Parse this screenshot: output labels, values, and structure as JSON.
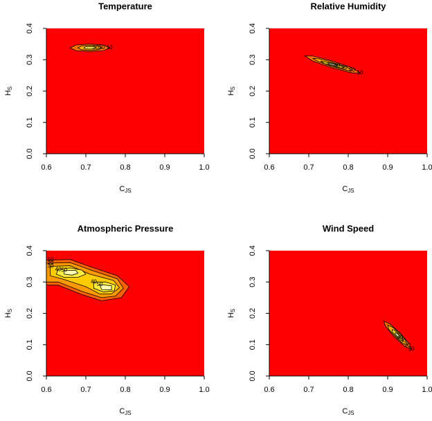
{
  "chart_data": [
    {
      "type": "contour",
      "title": "Temperature",
      "xlabel": "C",
      "xlabel_sub": "JS",
      "ylabel": "H",
      "ylabel_sub": "S",
      "background": "#ff0000",
      "xlim": [
        0.6,
        1.0
      ],
      "ylim": [
        0.0,
        0.4
      ],
      "xticks": [
        0.6,
        0.7,
        0.8,
        0.9,
        {
          "value": 1.0,
          "label": "1.0"
        }
      ],
      "yticks": [
        {
          "value": 0.0,
          "label": "0.0"
        },
        0.1,
        0.2,
        0.3,
        0.4
      ],
      "contours": [
        {
          "level": 10,
          "color": "#ff7000",
          "x": [
            0.76,
            0.745,
            0.71,
            0.675,
            0.66,
            0.675,
            0.71,
            0.745
          ],
          "y": [
            0.338,
            0.347,
            0.35,
            0.347,
            0.338,
            0.329,
            0.326,
            0.329
          ]
        },
        {
          "level": 20,
          "color": "#ffb000",
          "x": [
            0.74,
            0.731,
            0.71,
            0.689,
            0.68,
            0.689,
            0.71,
            0.731
          ],
          "y": [
            0.338,
            0.344,
            0.346,
            0.344,
            0.338,
            0.332,
            0.33,
            0.332
          ]
        },
        {
          "level": 30,
          "color": "#ffee60",
          "x": [
            0.725,
            0.721,
            0.71,
            0.699,
            0.695,
            0.699,
            0.71,
            0.721
          ],
          "y": [
            0.338,
            0.341,
            0.342,
            0.341,
            0.338,
            0.335,
            0.334,
            0.335
          ]
        }
      ]
    },
    {
      "type": "contour",
      "title": "Relative Humidity",
      "xlabel": "C",
      "xlabel_sub": "JS",
      "ylabel": "H",
      "ylabel_sub": "S",
      "background": "#ff0000",
      "xlim": [
        0.6,
        1.0
      ],
      "ylim": [
        0.0,
        0.4
      ],
      "xticks": [
        0.6,
        0.7,
        0.8,
        0.9,
        {
          "value": 1.0,
          "label": "1.0"
        }
      ],
      "yticks": [
        {
          "value": 0.0,
          "label": "0.0"
        },
        0.1,
        0.2,
        0.3,
        0.4
      ],
      "contours": [
        {
          "level": 10,
          "color": "#ff7000",
          "x": [
            0.83,
            0.81,
            0.76,
            0.71,
            0.69,
            0.71,
            0.76,
            0.81
          ],
          "y": [
            0.258,
            0.274,
            0.296,
            0.312,
            0.312,
            0.296,
            0.274,
            0.258
          ]
        },
        {
          "level": 20,
          "color": "#ffb000",
          "x": [
            0.81,
            0.795,
            0.76,
            0.725,
            0.71,
            0.725,
            0.76,
            0.795
          ],
          "y": [
            0.266,
            0.277,
            0.292,
            0.303,
            0.304,
            0.294,
            0.278,
            0.267
          ]
        },
        {
          "level": 30,
          "color": "#ffdd30",
          "x": [
            0.79,
            0.781,
            0.76,
            0.739,
            0.73,
            0.739,
            0.76,
            0.781
          ],
          "y": [
            0.274,
            0.28,
            0.289,
            0.293,
            0.296,
            0.288,
            0.281,
            0.274
          ]
        },
        {
          "level": 40,
          "color": "#ffffc0",
          "x": [
            0.772,
            0.768,
            0.76,
            0.752,
            0.748,
            0.752,
            0.76,
            0.768
          ],
          "y": [
            0.281,
            0.284,
            0.287,
            0.289,
            0.289,
            0.285,
            0.283,
            0.28
          ]
        }
      ]
    },
    {
      "type": "contour",
      "title": "Atmospheric Pressure",
      "xlabel": "C",
      "xlabel_sub": "JS",
      "ylabel": "H",
      "ylabel_sub": "S",
      "background": "#ff0000",
      "xlim": [
        0.6,
        1.0
      ],
      "ylim": [
        0.0,
        0.4
      ],
      "xticks": [
        0.6,
        0.7,
        0.8,
        0.9,
        {
          "value": 1.0,
          "label": "1.0"
        }
      ],
      "yticks": [
        {
          "value": 0.0,
          "label": "0.0"
        },
        0.1,
        0.2,
        0.3,
        0.4
      ],
      "contours": [
        {
          "level": 10,
          "color": "#ff6000",
          "x": [
            0.6,
            0.66,
            0.72,
            0.78,
            0.81,
            0.79,
            0.74,
            0.69,
            0.63,
            0.6
          ],
          "y": [
            0.37,
            0.372,
            0.345,
            0.32,
            0.285,
            0.25,
            0.24,
            0.26,
            0.29,
            0.29
          ]
        },
        {
          "level": 20,
          "color": "#ff9900",
          "x": [
            0.6,
            0.66,
            0.72,
            0.78,
            0.795,
            0.775,
            0.74,
            0.69,
            0.63,
            0.6
          ],
          "y": [
            0.36,
            0.362,
            0.335,
            0.31,
            0.28,
            0.255,
            0.25,
            0.27,
            0.3,
            0.3
          ]
        },
        {
          "level": 30,
          "color": "#ffcc00",
          "x": [
            0.61,
            0.66,
            0.71,
            0.77,
            0.785,
            0.765,
            0.735,
            0.7,
            0.64,
            0.61
          ],
          "y": [
            0.35,
            0.352,
            0.325,
            0.305,
            0.282,
            0.262,
            0.262,
            0.285,
            0.31,
            0.32
          ]
        },
        {
          "level": 40,
          "color": "#ffee40",
          "x": [
            0.63,
            0.66,
            0.69,
            0.7,
            0.68,
            0.645,
            0.625
          ],
          "y": [
            0.34,
            0.345,
            0.338,
            0.325,
            0.315,
            0.315,
            0.325
          ]
        },
        {
          "level": 40,
          "color": "#ffee40",
          "x": [
            0.72,
            0.75,
            0.775,
            0.772,
            0.745,
            0.72
          ],
          "y": [
            0.3,
            0.3,
            0.29,
            0.272,
            0.268,
            0.28
          ]
        },
        {
          "level": 50,
          "color": "#ffffb0",
          "x": [
            0.645,
            0.675,
            0.68,
            0.665,
            0.645
          ],
          "y": [
            0.337,
            0.337,
            0.328,
            0.322,
            0.325
          ]
        },
        {
          "level": 50,
          "color": "#ffffb0",
          "x": [
            0.735,
            0.765,
            0.765,
            0.74
          ],
          "y": [
            0.292,
            0.288,
            0.275,
            0.276
          ]
        }
      ]
    },
    {
      "type": "contour",
      "title": "Wind Speed",
      "xlabel": "C",
      "xlabel_sub": "JS",
      "ylabel": "H",
      "ylabel_sub": "S",
      "background": "#ff0000",
      "xlim": [
        0.6,
        1.0
      ],
      "ylim": [
        0.0,
        0.4
      ],
      "xticks": [
        0.6,
        0.7,
        0.8,
        0.9,
        {
          "value": 1.0,
          "label": "1.0"
        }
      ],
      "yticks": [
        {
          "value": 0.0,
          "label": "0.0"
        },
        0.1,
        0.2,
        0.3,
        0.4
      ],
      "contours": [
        {
          "level": 10,
          "color": "#ff7000",
          "x": [
            0.96,
            0.955,
            0.933,
            0.906,
            0.89,
            0.895,
            0.917,
            0.944
          ],
          "y": [
            0.085,
            0.102,
            0.136,
            0.166,
            0.175,
            0.158,
            0.124,
            0.094
          ]
        },
        {
          "level": 20,
          "color": "#ffb000",
          "x": [
            0.95,
            0.947,
            0.931,
            0.912,
            0.9,
            0.903,
            0.919,
            0.938
          ],
          "y": [
            0.098,
            0.111,
            0.135,
            0.156,
            0.162,
            0.149,
            0.126,
            0.104
          ]
        },
        {
          "level": 30,
          "color": "#ffdd30",
          "x": [
            0.939,
            0.938,
            0.929,
            0.918,
            0.911,
            0.912,
            0.921,
            0.932
          ],
          "y": [
            0.112,
            0.119,
            0.133,
            0.145,
            0.148,
            0.141,
            0.127,
            0.115
          ]
        },
        {
          "level": 40,
          "color": "#ffffc0",
          "x": [
            0.931,
            0.931,
            0.927,
            0.922,
            0.919,
            0.919,
            0.923,
            0.928
          ],
          "y": [
            0.122,
            0.125,
            0.132,
            0.137,
            0.138,
            0.135,
            0.128,
            0.123
          ]
        }
      ]
    }
  ]
}
